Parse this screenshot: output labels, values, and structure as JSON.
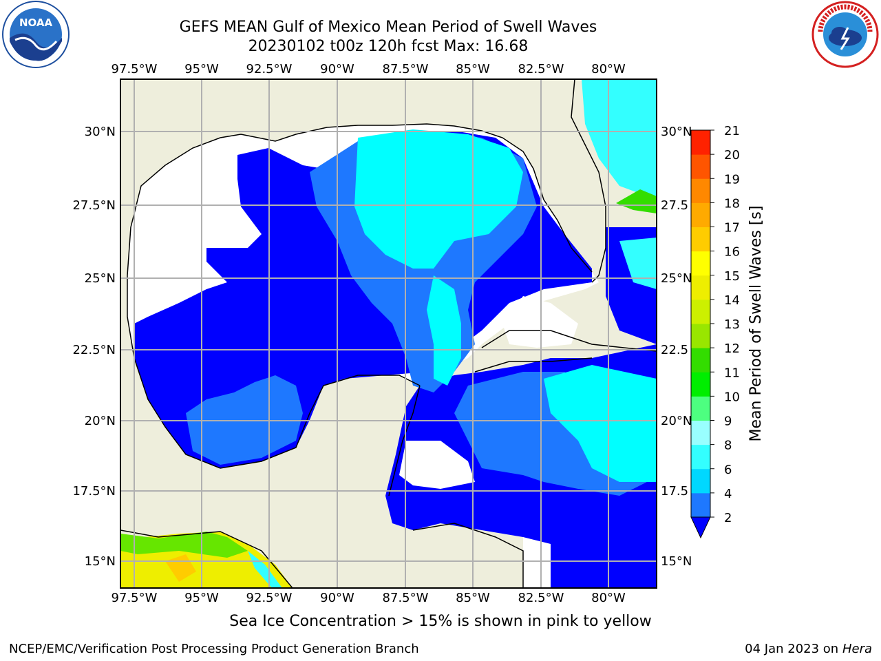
{
  "title": "GEFS MEAN Gulf of Mexico Mean Period of Swell Waves",
  "subtitle": "20230102 t00z 120h fcst   Max: 16.68",
  "logos": {
    "left": "noaa-logo",
    "right": "nws-logo"
  },
  "map": {
    "lon_labels": [
      "97.5°W",
      "95°W",
      "92.5°W",
      "90°W",
      "87.5°W",
      "85°W",
      "82.5°W",
      "80°W"
    ],
    "lat_labels": [
      "30°N",
      "27.5°N",
      "25°N",
      "22.5°N",
      "20°N",
      "17.5°N",
      "15°N"
    ],
    "lat_labels_right": [
      "30°N",
      "27.5",
      "25°N",
      "22.5",
      "20°N",
      "17.5",
      "15°N"
    ],
    "colors": {
      "land": "#eeeedc",
      "grid": "#b0b0b0",
      "ocean_low": "#0000ff",
      "ocean_mid": "#1e78ff",
      "ocean_high": "#00ffff"
    }
  },
  "colorbar": {
    "label": "Mean Period of Swell Waves [s]",
    "ticks": [
      "2",
      "4",
      "6",
      "8",
      "9",
      "10",
      "11",
      "12",
      "13",
      "14",
      "15",
      "16",
      "17",
      "18",
      "19",
      "20",
      "21"
    ],
    "colors": [
      "#1e78ff",
      "#00d8ff",
      "#33ffff",
      "#99ffff",
      "#4dff80",
      "#00ee00",
      "#33dd00",
      "#99e600",
      "#ccf000",
      "#eeee00",
      "#ffff00",
      "#ffcc00",
      "#ffaa00",
      "#ff8800",
      "#ff5500",
      "#ff2200"
    ],
    "extend_color": "#0000ff"
  },
  "note": "Sea Ice Concentration > 15% is shown in pink to yellow",
  "footer_left": "NCEP/EMC/Verification Post Processing Product Generation Branch",
  "footer_date": "04 Jan 2023 on ",
  "footer_host": "Hera"
}
